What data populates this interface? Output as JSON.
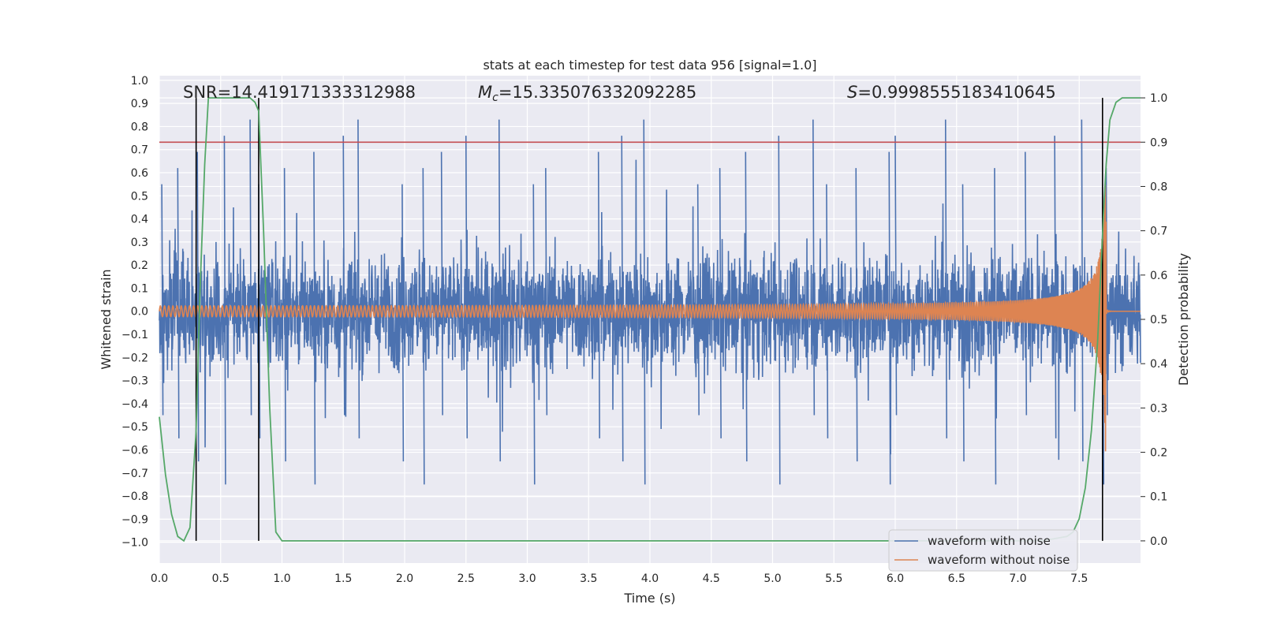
{
  "chart_data": {
    "type": "line",
    "title": "stats at each timestep for test data 956 [signal=1.0]",
    "xlabel": "Time (s)",
    "ylabel_left": "Whitened strain",
    "ylabel_right": "Detection probability",
    "xlim": [
      0.0,
      8.0
    ],
    "ylim_left": [
      -1.09,
      1.02
    ],
    "ylim_right": [
      -0.05,
      1.05
    ],
    "x_ticks": [
      "0.0",
      "0.5",
      "1.0",
      "1.5",
      "2.0",
      "2.5",
      "3.0",
      "3.5",
      "4.0",
      "4.5",
      "5.0",
      "5.5",
      "6.0",
      "6.5",
      "7.0",
      "7.5"
    ],
    "y_left_ticks": [
      "1.0",
      "0.9",
      "0.8",
      "0.7",
      "0.6",
      "0.5",
      "0.4",
      "0.3",
      "0.2",
      "0.1",
      "0.0",
      "−0.1",
      "−0.2",
      "−0.3",
      "−0.4",
      "−0.5",
      "−0.6",
      "−0.7",
      "−0.8",
      "−0.9",
      "−1.0"
    ],
    "y_right_ticks": [
      "1.0",
      "0.9",
      "0.8",
      "0.7",
      "0.6",
      "0.5",
      "0.4",
      "0.3",
      "0.2",
      "0.1",
      "0.0"
    ],
    "grid": true,
    "legend_position": "lower-right",
    "annotations": {
      "snr": "SNR=14.419171333312988",
      "mc_symbol": "M",
      "mc_sub": "c",
      "mc_value": "=15.335076332092285",
      "s_symbol": "S",
      "s_value": "=0.9998555183410645"
    },
    "threshold_right": 0.9,
    "vlines_x": [
      0.3,
      0.81,
      7.69
    ],
    "series": [
      {
        "name": "waveform with noise",
        "color": "#4c72b0",
        "description_peaks_x": [
          0.02,
          0.15,
          0.31,
          0.53,
          0.74,
          0.81,
          1.02,
          1.26,
          1.5,
          1.62,
          1.98,
          2.15,
          2.3,
          2.5,
          2.77,
          3.05,
          3.15,
          3.58,
          3.77,
          3.95,
          4.39,
          4.57,
          4.78,
          5.05,
          5.33,
          5.44,
          5.68,
          5.95,
          6.0,
          6.41,
          6.55,
          6.81,
          7.06,
          7.3,
          7.52,
          7.69,
          7.72
        ],
        "envelope_upper": 0.55,
        "envelope_lower": -0.55,
        "max": 0.94,
        "min": -1.0
      },
      {
        "name": "waveform without noise",
        "color": "#dd8452",
        "chirp_start_amp": 0.02,
        "chirp_end_amp": 0.75,
        "merger_time": 7.72
      },
      {
        "color": "#55a868",
        "x": [
          0.0,
          0.05,
          0.1,
          0.15,
          0.2,
          0.25,
          0.3,
          0.33,
          0.37,
          0.4,
          0.5,
          0.6,
          0.7,
          0.74,
          0.78,
          0.81,
          0.85,
          0.9,
          0.95,
          1.0,
          1.5,
          2.0,
          3.0,
          4.0,
          5.0,
          6.0,
          7.0,
          7.2,
          7.4,
          7.45,
          7.5,
          7.55,
          7.6,
          7.65,
          7.7,
          7.72,
          7.75,
          7.8,
          7.85,
          7.9,
          7.95,
          8.0
        ],
        "y": [
          0.28,
          0.15,
          0.06,
          0.01,
          0.0,
          0.03,
          0.25,
          0.55,
          0.85,
          1.0,
          1.0,
          1.0,
          1.0,
          1.0,
          0.99,
          0.97,
          0.7,
          0.3,
          0.02,
          0.0,
          0.0,
          0.0,
          0.0,
          0.0,
          0.0,
          0.0,
          0.0,
          0.0,
          0.01,
          0.02,
          0.05,
          0.12,
          0.25,
          0.45,
          0.75,
          0.85,
          0.95,
          0.99,
          1.0,
          1.0,
          1.0,
          1.0
        ]
      }
    ]
  }
}
